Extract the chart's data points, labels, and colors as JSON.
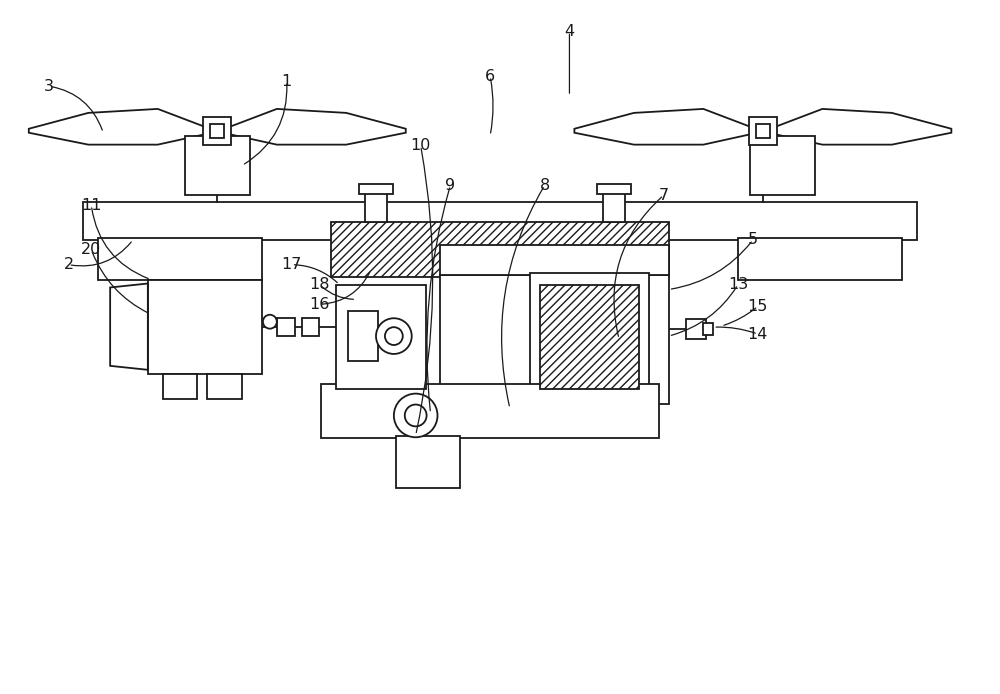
{
  "bg_color": "#ffffff",
  "line_color": "#1a1a1a",
  "figsize": [
    10.0,
    6.94
  ],
  "dpi": 100,
  "title": ""
}
